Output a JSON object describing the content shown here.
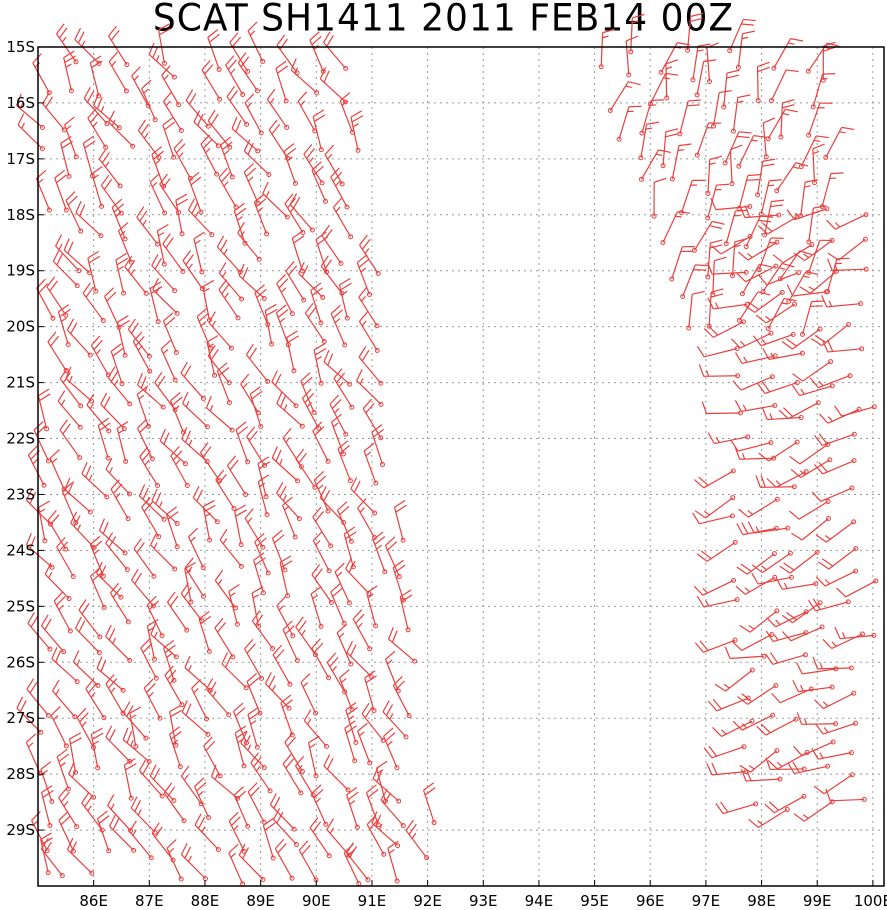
{
  "title": "SCAT SH1411 2011 FEB14 00Z",
  "colors": {
    "barb": "#e8413f",
    "grid": "#9a9a9a",
    "frame": "#000000",
    "background": "#ffffff"
  },
  "map": {
    "lon_range": [
      85.0,
      100.2
    ],
    "lat_range": [
      -30.0,
      -15.0
    ],
    "grid": "dotted",
    "x_ticks": [
      "86E",
      "87E",
      "88E",
      "89E",
      "90E",
      "91E",
      "92E",
      "93E",
      "94E",
      "95E",
      "96E",
      "97E",
      "98E",
      "99E",
      "100E"
    ],
    "x_tick_values": [
      86,
      87,
      88,
      89,
      90,
      91,
      92,
      93,
      94,
      95,
      96,
      97,
      98,
      99,
      100
    ],
    "y_ticks": [
      "15S",
      "16S",
      "17S",
      "18S",
      "19S",
      "20S",
      "21S",
      "22S",
      "23S",
      "24S",
      "25S",
      "26S",
      "27S",
      "28S",
      "29S"
    ],
    "y_tick_values": [
      -15,
      -16,
      -17,
      -18,
      -19,
      -20,
      -21,
      -22,
      -23,
      -24,
      -25,
      -26,
      -27,
      -28,
      -29
    ]
  },
  "swaths": [
    {
      "name": "west",
      "lon_min": 85.1,
      "lon_max_north": 90.8,
      "lon_max_south": 92.2,
      "lat_min": -29.9,
      "lat_max": -15.4,
      "dir_deg": 330,
      "speed_kt": 20
    },
    {
      "name": "east-north",
      "lon_min_north": 95.0,
      "lon_min_south": 96.8,
      "lon_max": 99.2,
      "lat_min": -20.2,
      "lat_max": -15.0,
      "dir_deg": 15,
      "speed_kt": 15
    },
    {
      "name": "east-south",
      "lon_min": 97.6,
      "lon_max": 100.2,
      "lat_min": -28.5,
      "lat_max": -18.0,
      "dir_deg": 250,
      "speed_kt": 15
    }
  ]
}
